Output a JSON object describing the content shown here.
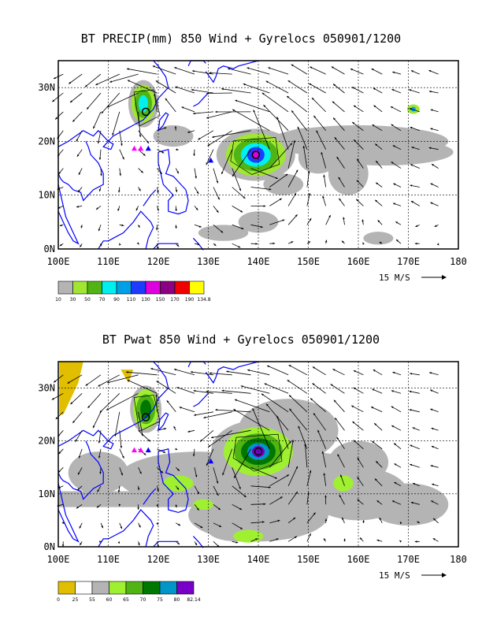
{
  "panels": [
    {
      "title": "BT PRECIP(mm) 850 Wind + Gyrelocs 050901/1200",
      "ref_vector_label": "15 M/S",
      "colorbar_labels": [
        "10",
        "30",
        "50",
        "70",
        "90",
        "110",
        "130",
        "150",
        "170",
        "190",
        "134.8"
      ],
      "colorbar_colors": [
        "#b4b4b4",
        "#a0e632",
        "#50b414",
        "#00f0f0",
        "#00a0e6",
        "#1e3cff",
        "#dc00dc",
        "#8c0082",
        "#f00000",
        "#ffff00"
      ]
    },
    {
      "title": "BT Pwat 850 Wind + Gyrelocs 050901/1200",
      "ref_vector_label": "15 M/S",
      "colorbar_labels": [
        "0",
        "25",
        "55",
        "60",
        "65",
        "70",
        "75",
        "80",
        "82.14"
      ],
      "colorbar_colors": [
        "#e1be00",
        "#ffffff",
        "#b4b4b4",
        "#a0f032",
        "#50b414",
        "#007800",
        "#0096c8",
        "#7800c8"
      ]
    }
  ],
  "axes": {
    "x_ticks": [
      "100E",
      "110E",
      "120E",
      "130E",
      "140E",
      "150E",
      "160E",
      "170E",
      "180"
    ],
    "y_ticks": [
      "0N",
      "10N",
      "20N",
      "30N"
    ]
  },
  "colors": {
    "coast": "#0000ff",
    "marker_magenta": "#ff00ff",
    "marker_blue": "#0000ff"
  }
}
